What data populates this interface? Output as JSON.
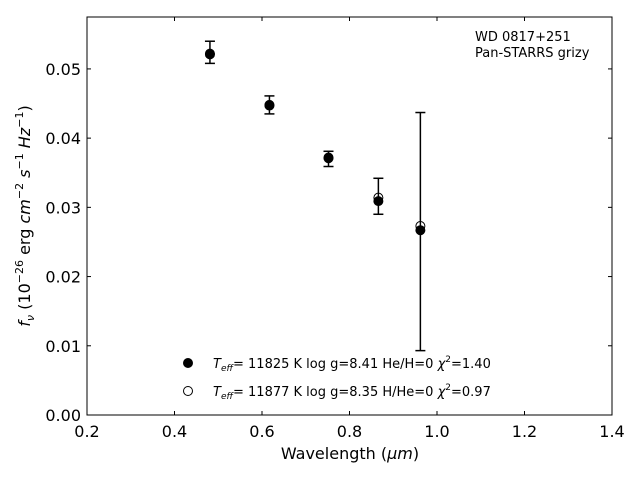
{
  "chart_data": {
    "type": "scatter",
    "annotation": [
      "WD 0817+251",
      "Pan-STARRS grizy"
    ],
    "xlabel_prefix": "Wavelength (",
    "xlabel_unit": "μm",
    "xlabel_suffix": ")",
    "ylabel": {
      "f": "f",
      "sub": "ν",
      "open": " (10",
      "exp1": "−26",
      "erg": " erg ",
      "cm": "cm",
      "exp2": "−2",
      "s": " s",
      "exp3": "−1",
      "hz": " Hz",
      "exp4": "−1",
      "close": ")"
    },
    "xlim": [
      0.2,
      1.4
    ],
    "ylim": [
      0.0,
      0.0575
    ],
    "xticks": [
      "0.2",
      "0.4",
      "0.6",
      "0.8",
      "1.0",
      "1.2",
      "1.4"
    ],
    "yticks": [
      "0.00",
      "0.01",
      "0.02",
      "0.03",
      "0.04",
      "0.05"
    ],
    "observed": {
      "x": [
        0.481,
        0.617,
        0.752,
        0.866,
        0.962
      ],
      "y": [
        0.0524,
        0.0448,
        0.037,
        0.0316,
        0.0265
      ],
      "err": [
        0.0016,
        0.0013,
        0.0011,
        0.0026,
        0.0172
      ]
    },
    "series": [
      {
        "marker": "filled",
        "x": [
          0.481,
          0.617,
          0.752,
          0.866,
          0.962
        ],
        "y": [
          0.0521,
          0.0447,
          0.0371,
          0.0309,
          0.0267
        ],
        "legend": {
          "t": "T",
          "sub": "eff",
          "rest": "= 11825 K  log g=8.41  He/H=0  ",
          "chi": "χ",
          "sup": "2",
          "val": "=1.40"
        }
      },
      {
        "marker": "open",
        "x": [
          0.481,
          0.617,
          0.752,
          0.866,
          0.962
        ],
        "y": [
          0.0522,
          0.0448,
          0.0372,
          0.0314,
          0.0273
        ],
        "legend": {
          "t": "T",
          "sub": "eff",
          "rest": "= 11877 K  log g=8.35  H/He=0  ",
          "chi": "χ",
          "sup": "2",
          "val": "=0.97"
        }
      }
    ],
    "colors": {
      "marker": "#000000",
      "axis": "#000000"
    }
  }
}
